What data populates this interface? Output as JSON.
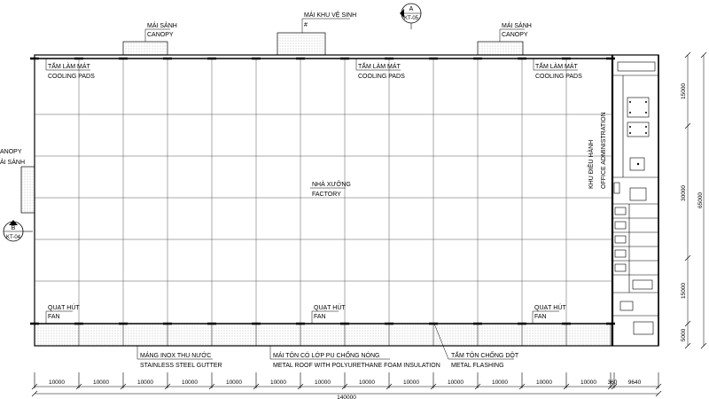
{
  "section_markers": {
    "top": {
      "letter": "A",
      "sheet": "KT-05"
    },
    "left": {
      "letter": "B",
      "sheet": "KT-04"
    }
  },
  "labels": {
    "canopy_1": {
      "vi": "MÁI SẢNH",
      "en": "CANOPY"
    },
    "wc_roof": {
      "vi": "MÁI KHU VỆ SINH",
      "mark": "#"
    },
    "canopy_2": {
      "vi": "MÁI SẢNH",
      "en": "CANOPY"
    },
    "canopy_left": {
      "vi": "ẢI SẢNH",
      "en": "ANOPY"
    },
    "cooling_pads": {
      "vi": "TẤM LÀM MÁT",
      "en": "COOLING PADS"
    },
    "factory": {
      "vi": "NHÀ XƯỞNG",
      "en": "FACTORY"
    },
    "office": {
      "vi": "KHU ĐIỀU HÀNH",
      "en": "OFFICE ADMINISTRATION"
    },
    "fan": {
      "vi": "QUẠT HÚT",
      "en": "FAN"
    },
    "gutter": {
      "vi": "MÁNG INOX THU NƯỚC",
      "en": "STAINLESS STEEL GUTTER"
    },
    "metal_roof": {
      "vi": "MÁI TÔN CÓ LỚP PU CHỐNG NÓNG",
      "en": "METAL ROOF WITH POLYURETHANE FOAM INSULATION"
    },
    "flashing": {
      "vi": "TẤM TÔN CHỐNG DỘT",
      "en": "METAL FLASHING"
    }
  },
  "dimensions": {
    "bays": [
      "10000",
      "10000",
      "10000",
      "10000",
      "10000",
      "10000",
      "10000",
      "10000",
      "10000",
      "10000",
      "10000",
      "10000",
      "10000"
    ],
    "small": "360",
    "last": "9640",
    "total": "140000",
    "right_segments": [
      "15000",
      "30000",
      "15000",
      "5000"
    ],
    "right_total": "65000"
  }
}
